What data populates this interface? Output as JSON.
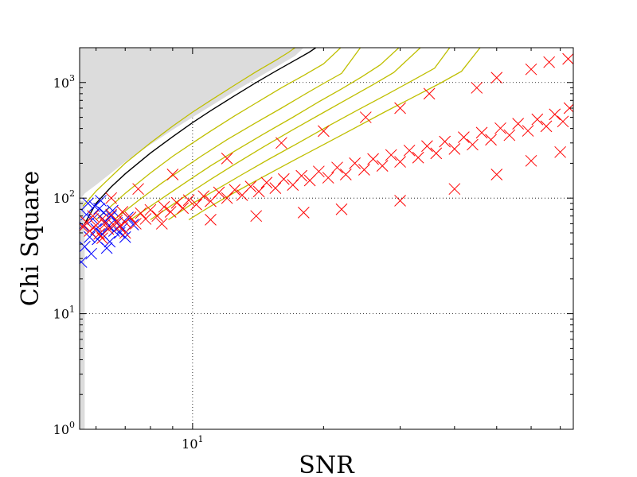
{
  "chart_data": {
    "type": "scatter",
    "title": "",
    "xlabel": "SNR",
    "ylabel": "Chi Square",
    "x_scale": "log",
    "y_scale": "log",
    "xlim": [
      5.5,
      75
    ],
    "ylim": [
      1,
      2000
    ],
    "x_ticks": [
      {
        "value": 10,
        "label": "10",
        "exp": "1"
      }
    ],
    "y_ticks": [
      {
        "value": 1,
        "label": "10",
        "exp": "0"
      },
      {
        "value": 10,
        "label": "10",
        "exp": "1"
      },
      {
        "value": 100,
        "label": "10",
        "exp": "2"
      },
      {
        "value": 1000,
        "label": "10",
        "exp": "3"
      }
    ],
    "grid": true,
    "grid_style": "dotted",
    "colors": {
      "foreground": "#ff0000",
      "background": "#0000ff",
      "veto_region": "#dcdcdc",
      "threshold": "#000000",
      "contours": "#bfbf00"
    },
    "series": [
      {
        "role": "background_triggers",
        "marker": "x",
        "color": "#0000ff",
        "points": [
          [
            5.6,
            58
          ],
          [
            5.7,
            72
          ],
          [
            5.8,
            46
          ],
          [
            5.9,
            66
          ],
          [
            6.0,
            54
          ],
          [
            6.1,
            81
          ],
          [
            6.2,
            49
          ],
          [
            6.3,
            63
          ],
          [
            6.4,
            57
          ],
          [
            6.5,
            70
          ],
          [
            6.6,
            52
          ],
          [
            6.7,
            61
          ],
          [
            6.9,
            55
          ],
          [
            7.1,
            68
          ],
          [
            5.65,
            38
          ],
          [
            5.75,
            90
          ],
          [
            6.05,
            44
          ],
          [
            5.85,
            33
          ],
          [
            6.25,
            75
          ],
          [
            6.45,
            42
          ],
          [
            6.8,
            50
          ],
          [
            7.3,
            59
          ],
          [
            5.55,
            28
          ],
          [
            5.95,
            85
          ],
          [
            6.15,
            95
          ],
          [
            6.35,
            37
          ],
          [
            6.55,
            78
          ],
          [
            7.0,
            46
          ]
        ]
      },
      {
        "role": "foreground_injections",
        "marker": "x",
        "color": "#ff0000",
        "points": [
          [
            5.6,
            56
          ],
          [
            5.7,
            62
          ],
          [
            5.8,
            52
          ],
          [
            5.9,
            70
          ],
          [
            6.0,
            58
          ],
          [
            6.1,
            49
          ],
          [
            6.2,
            66
          ],
          [
            6.3,
            60
          ],
          [
            6.4,
            54
          ],
          [
            6.5,
            72
          ],
          [
            6.6,
            58
          ],
          [
            6.7,
            64
          ],
          [
            6.8,
            57
          ],
          [
            6.9,
            76
          ],
          [
            7.0,
            62
          ],
          [
            7.2,
            68
          ],
          [
            7.4,
            60
          ],
          [
            7.6,
            74
          ],
          [
            7.8,
            66
          ],
          [
            8.0,
            79
          ],
          [
            8.3,
            70
          ],
          [
            8.6,
            84
          ],
          [
            8.9,
            76
          ],
          [
            9.2,
            91
          ],
          [
            9.5,
            82
          ],
          [
            9.8,
            96
          ],
          [
            10.2,
            88
          ],
          [
            10.6,
            104
          ],
          [
            11.0,
            94
          ],
          [
            11.5,
            112
          ],
          [
            12.0,
            100
          ],
          [
            12.5,
            118
          ],
          [
            13.0,
            106
          ],
          [
            13.6,
            126
          ],
          [
            14.2,
            114
          ],
          [
            14.8,
            136
          ],
          [
            15.5,
            122
          ],
          [
            16.2,
            146
          ],
          [
            17.0,
            130
          ],
          [
            17.8,
            156
          ],
          [
            18.6,
            142
          ],
          [
            19.5,
            170
          ],
          [
            20.5,
            150
          ],
          [
            21.5,
            184
          ],
          [
            22.5,
            160
          ],
          [
            23.6,
            200
          ],
          [
            24.8,
            176
          ],
          [
            26.0,
            218
          ],
          [
            27.3,
            190
          ],
          [
            28.6,
            236
          ],
          [
            30.0,
            206
          ],
          [
            31.5,
            258
          ],
          [
            33.0,
            224
          ],
          [
            34.6,
            282
          ],
          [
            36.3,
            244
          ],
          [
            38.0,
            308
          ],
          [
            40.0,
            266
          ],
          [
            42.0,
            336
          ],
          [
            44.0,
            290
          ],
          [
            46.2,
            368
          ],
          [
            48.5,
            320
          ],
          [
            51.0,
            402
          ],
          [
            53.5,
            350
          ],
          [
            56.0,
            440
          ],
          [
            59.0,
            382
          ],
          [
            62.0,
            480
          ],
          [
            65.0,
            418
          ],
          [
            68.0,
            530
          ],
          [
            71.0,
            460
          ],
          [
            73.5,
            600
          ],
          [
            60.0,
            1300
          ],
          [
            66.0,
            1500
          ],
          [
            73.0,
            1600
          ],
          [
            45.0,
            900
          ],
          [
            50.0,
            1100
          ],
          [
            30.0,
            600
          ],
          [
            35.0,
            800
          ],
          [
            25.0,
            500
          ],
          [
            20.0,
            380
          ],
          [
            16.0,
            300
          ],
          [
            12.0,
            220
          ],
          [
            9.0,
            160
          ],
          [
            7.5,
            120
          ],
          [
            6.5,
            100
          ],
          [
            40.0,
            120
          ],
          [
            50.0,
            160
          ],
          [
            60.0,
            210
          ],
          [
            70.0,
            250
          ],
          [
            30.0,
            95
          ],
          [
            22.0,
            80
          ],
          [
            18.0,
            75
          ],
          [
            14.0,
            70
          ],
          [
            11.0,
            65
          ],
          [
            8.5,
            60
          ],
          [
            7.0,
            50
          ],
          [
            6.2,
            45
          ]
        ]
      }
    ],
    "threshold_curve": {
      "label": "",
      "points": [
        [
          5.65,
          60
        ],
        [
          6.0,
          90
        ],
        [
          6.5,
          125
        ],
        [
          7.0,
          162
        ],
        [
          8.0,
          245
        ],
        [
          9.0,
          340
        ],
        [
          10.0,
          450
        ],
        [
          11.0,
          570
        ],
        [
          12.5,
          770
        ],
        [
          14.0,
          1000
        ],
        [
          15.5,
          1250
        ],
        [
          17.0,
          1520
        ],
        [
          18.5,
          1820
        ],
        [
          19.2,
          2000
        ]
      ]
    },
    "contours": [
      {
        "points": [
          [
            5.6,
            85
          ],
          [
            6.0,
            115
          ],
          [
            7.0,
            200
          ],
          [
            8.0,
            300
          ],
          [
            9.0,
            420
          ],
          [
            10.0,
            555
          ],
          [
            11.0,
            700
          ],
          [
            12.5,
            950
          ],
          [
            14.0,
            1240
          ],
          [
            15.5,
            1550
          ],
          [
            16.6,
            1820
          ],
          [
            17.2,
            2000
          ]
        ]
      },
      {
        "points": [
          [
            6.0,
            65
          ],
          [
            7.0,
            110
          ],
          [
            8.0,
            165
          ],
          [
            9.0,
            230
          ],
          [
            10.0,
            300
          ],
          [
            11.0,
            380
          ],
          [
            12.5,
            515
          ],
          [
            14.0,
            665
          ],
          [
            16.0,
            900
          ],
          [
            18.0,
            1150
          ],
          [
            20.0,
            1450
          ],
          [
            21.9,
            2000
          ]
        ]
      },
      {
        "points": [
          [
            6.6,
            65
          ],
          [
            7.5,
            95
          ],
          [
            8.5,
            135
          ],
          [
            9.5,
            180
          ],
          [
            10.5,
            232
          ],
          [
            12.0,
            320
          ],
          [
            14.0,
            450
          ],
          [
            16.0,
            600
          ],
          [
            18.0,
            780
          ],
          [
            20.0,
            980
          ],
          [
            22.0,
            1200
          ],
          [
            24.3,
            2000
          ]
        ]
      },
      {
        "points": [
          [
            7.2,
            65
          ],
          [
            8.0,
            85
          ],
          [
            9.0,
            115
          ],
          [
            10.0,
            150
          ],
          [
            11.0,
            190
          ],
          [
            12.5,
            255
          ],
          [
            14.5,
            355
          ],
          [
            17.0,
            500
          ],
          [
            19.5,
            680
          ],
          [
            22.0,
            880
          ],
          [
            24.5,
            1120
          ],
          [
            27.0,
            1420
          ],
          [
            29.8,
            2000
          ]
        ]
      },
      {
        "points": [
          [
            8.0,
            65
          ],
          [
            9.0,
            88
          ],
          [
            10.0,
            115
          ],
          [
            11.0,
            145
          ],
          [
            12.5,
            196
          ],
          [
            14.5,
            275
          ],
          [
            17.0,
            390
          ],
          [
            20.0,
            550
          ],
          [
            23.0,
            740
          ],
          [
            26.0,
            960
          ],
          [
            29.0,
            1220
          ],
          [
            33.4,
            2000
          ]
        ]
      },
      {
        "points": [
          [
            8.8,
            65
          ],
          [
            10.0,
            90
          ],
          [
            11.5,
            122
          ],
          [
            13.0,
            160
          ],
          [
            15.0,
            218
          ],
          [
            17.5,
            300
          ],
          [
            20.5,
            420
          ],
          [
            24.0,
            580
          ],
          [
            28.0,
            790
          ],
          [
            32.0,
            1040
          ],
          [
            36.0,
            1330
          ],
          [
            39.0,
            2000
          ]
        ]
      },
      {
        "points": [
          [
            9.8,
            65
          ],
          [
            11.0,
            85
          ],
          [
            12.5,
            112
          ],
          [
            14.5,
            152
          ],
          [
            17.0,
            210
          ],
          [
            20.0,
            290
          ],
          [
            23.5,
            400
          ],
          [
            27.5,
            550
          ],
          [
            32.0,
            740
          ],
          [
            37.0,
            980
          ],
          [
            41.5,
            1250
          ],
          [
            45.8,
            2000
          ]
        ]
      }
    ],
    "veto_region_upper_boundary": [
      [
        5.5,
        95
      ],
      [
        5.65,
        110
      ],
      [
        6.0,
        130
      ],
      [
        6.5,
        165
      ],
      [
        7.0,
        205
      ],
      [
        8.0,
        290
      ],
      [
        9.0,
        390
      ],
      [
        10.0,
        500
      ],
      [
        11.0,
        625
      ],
      [
        12.5,
        840
      ],
      [
        14.0,
        1080
      ],
      [
        15.5,
        1350
      ],
      [
        17.2,
        1700
      ],
      [
        18.0,
        2000
      ]
    ],
    "veto_region_lower_strip": {
      "x_max": 5.65,
      "y_min": 1,
      "y_max": 95
    }
  }
}
